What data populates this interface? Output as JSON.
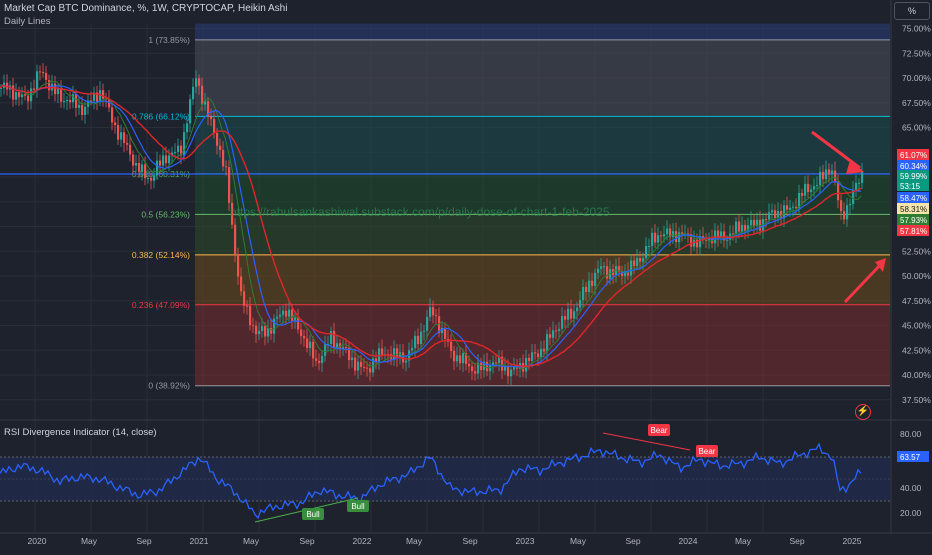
{
  "header": {
    "title": "Market Cap BTC Dominance, %, 1W, CRYPTOCAP, Heikin Ashi",
    "subtitle": "Daily Lines",
    "currency_button": "%"
  },
  "watermark": "https://rahulsankashiwal.substack.com/p/daily-dose-of-chart-1-feb-2025",
  "colors": {
    "background": "#1e222d",
    "grid": "#2a2e39",
    "up": "#26a69a",
    "down": "#ef5350",
    "ma_red": "#e0262b",
    "ma_blue": "#2962ff",
    "ma_green": "#2e7d32",
    "hline": "#2962ff",
    "rsi_line": "#2962ff"
  },
  "price_axis": {
    "ticks": [
      "75.00%",
      "72.50%",
      "70.00%",
      "67.50%",
      "65.00%",
      "52.50%",
      "50.00%",
      "47.50%",
      "45.00%",
      "42.50%",
      "40.00%",
      "37.50%"
    ],
    "badges": [
      {
        "text": "61.07%",
        "color": "#f23645"
      },
      {
        "text": "60.34%",
        "color": "#2962ff"
      },
      {
        "text": "59.99%",
        "color": "#089981"
      },
      {
        "text": "53:15",
        "color": "#089981"
      },
      {
        "text": "58.47%",
        "color": "#2962ff"
      },
      {
        "text": "58.31%",
        "color": "#f5e6a8",
        "text_color": "#131722"
      },
      {
        "text": "57.93%",
        "color": "#2e7d32"
      },
      {
        "text": "57.81%",
        "color": "#f23645"
      }
    ]
  },
  "fib_levels": [
    {
      "label": "1",
      "value_label": "(73.85%)",
      "price": 73.85,
      "color": "#9598a1"
    },
    {
      "label": "0.786",
      "value_label": "(66.12%)",
      "price": 66.12,
      "color": "#00bcd4"
    },
    {
      "label": "0.618",
      "value_label": "(60.31%)",
      "price": 60.31,
      "color": "#4caf50"
    },
    {
      "label": "0.5",
      "value_label": "(56.23%)",
      "price": 56.23,
      "color": "#66bb6a"
    },
    {
      "label": "0.382",
      "value_label": "(52.14%)",
      "price": 52.14,
      "color": "#ffb74d"
    },
    {
      "label": "0.236",
      "value_label": "(47.09%)",
      "price": 47.09,
      "color": "#f23645"
    },
    {
      "label": "0",
      "value_label": "(38.92%)",
      "price": 38.92,
      "color": "#9598a1"
    }
  ],
  "rsi": {
    "title": "RSI Divergence Indicator (14, close)",
    "ticks": [
      "80.00",
      "40.00",
      "20.00"
    ],
    "current_badge": "63.57",
    "labels": {
      "bull1": "Bull",
      "bull2": "Bull",
      "bear1": "Bear",
      "bear2": "Bear"
    }
  },
  "time_axis": [
    "2020",
    "May",
    "Sep",
    "2021",
    "May",
    "Sep",
    "2022",
    "May",
    "Sep",
    "2023",
    "May",
    "Sep",
    "2024",
    "May",
    "Sep",
    "2025"
  ]
}
